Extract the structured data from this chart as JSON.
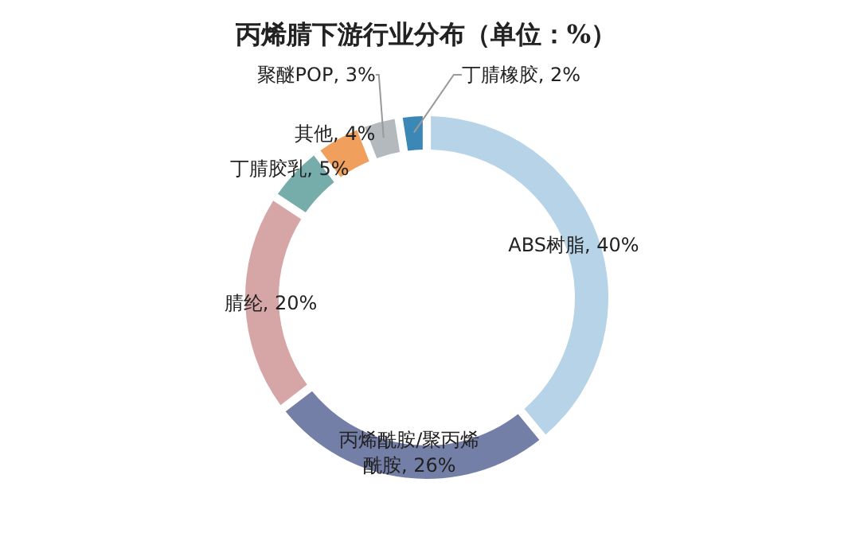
{
  "chart_data": {
    "type": "donut",
    "title": "丙烯腈下游行业分布（单位：%）",
    "categories": [
      "ABS树脂",
      "丙烯酰胺/聚丙烯酰胺",
      "腈纶",
      "丁腈胶乳",
      "其他",
      "聚醚POP",
      "丁腈橡胶"
    ],
    "values": [
      40,
      26,
      20,
      5,
      4,
      3,
      2
    ],
    "colors": [
      "#b6d3e7",
      "#737fa6",
      "#d6a5a5",
      "#76adab",
      "#f0a05c",
      "#b3b9bc",
      "#3b87b5"
    ],
    "value_labels": [
      ", 40%",
      ", 26%",
      ", 20%",
      ", 5%",
      ", 4%",
      ", 3%",
      ", 2%"
    ]
  }
}
